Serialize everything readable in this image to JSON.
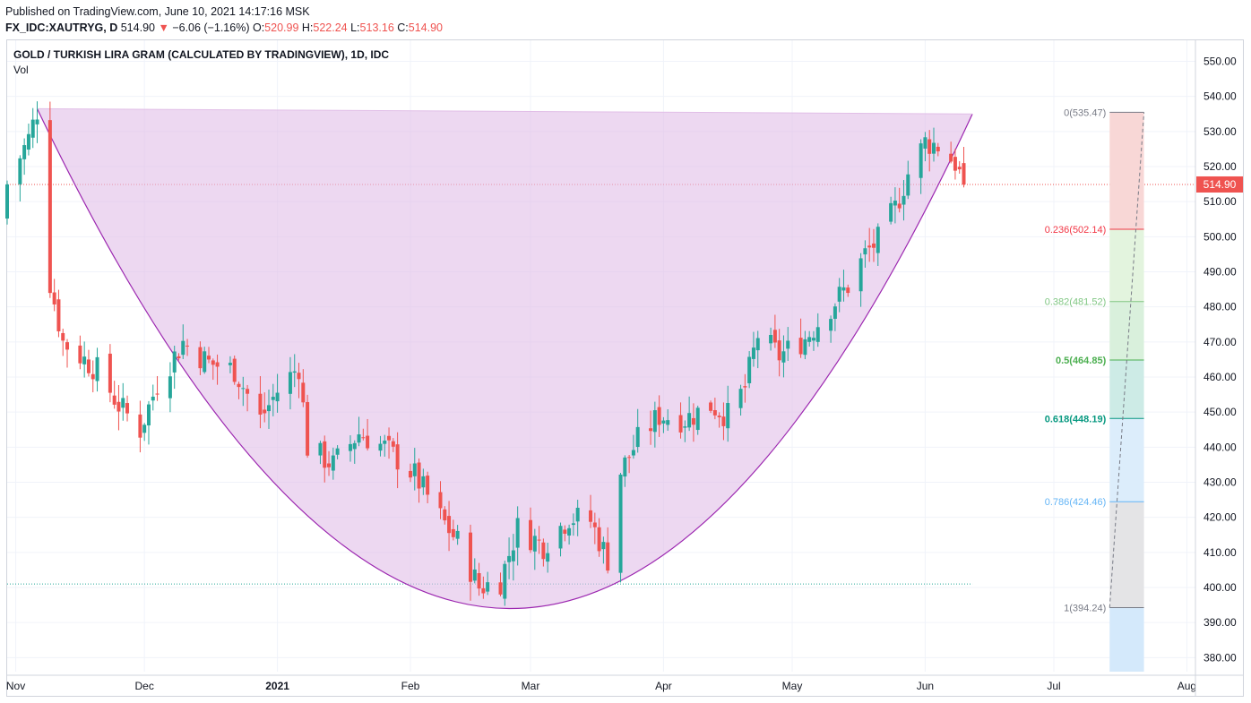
{
  "header": {
    "published": "Published on TradingView.com, June 10, 2021 14:17:16 MSK",
    "symbol": "FX_IDC:XAUTRYG, D",
    "last": "514.90",
    "change_arrow": "▼",
    "change": "−6.06 (−1.16%)",
    "o_label": "O:",
    "o": "520.99",
    "h_label": "H:",
    "h": "522.24",
    "l_label": "L:",
    "l": "513.16",
    "c_label": "C:",
    "c": "514.90"
  },
  "chart_data": {
    "type": "candlestick",
    "title": "GOLD / TURKISH LIRA GRAM (CALCULATED BY TRADINGVIEW), 1D, IDC",
    "subtitle": "Vol",
    "ylim": [
      376,
      556
    ],
    "y_ticks": [
      "550.00",
      "540.00",
      "530.00",
      "520.00",
      "510.00",
      "500.00",
      "490.00",
      "480.00",
      "470.00",
      "460.00",
      "450.00",
      "440.00",
      "430.00",
      "420.00",
      "410.00",
      "400.00",
      "390.00",
      "380.00"
    ],
    "x_ticks": [
      {
        "label": "Nov",
        "date": "2020-11-01"
      },
      {
        "label": "Dec",
        "date": "2020-12-01"
      },
      {
        "label": "2021",
        "date": "2021-01-01",
        "bold": true
      },
      {
        "label": "Feb",
        "date": "2021-02-01"
      },
      {
        "label": "Mar",
        "date": "2021-03-01"
      },
      {
        "label": "Apr",
        "date": "2021-04-01"
      },
      {
        "label": "May",
        "date": "2021-05-01"
      },
      {
        "label": "Jun",
        "date": "2021-06-01"
      },
      {
        "label": "Jul",
        "date": "2021-07-01"
      },
      {
        "label": "Aug",
        "date": "2021-08-01"
      }
    ],
    "x_range": [
      "2020-10-30",
      "2021-08-03"
    ],
    "last_price": 514.9,
    "last_price_label": "514.90",
    "support_level": 401,
    "colors": {
      "up": "#26a69a",
      "down": "#ef5350",
      "cup_fill": "#e1bee7",
      "cup_line": "#9c27b0"
    },
    "cup": {
      "rim_left": {
        "date": "2020-11-06",
        "price": 536.5
      },
      "rim_right": {
        "date": "2021-06-12",
        "price": 535
      },
      "bottom": {
        "date": "2021-02-24",
        "price": 394
      }
    },
    "closes": [
      {
        "date": "2020-10-30",
        "close": 515
      },
      {
        "date": "2020-11-04",
        "close": 528
      },
      {
        "date": "2020-11-06",
        "close": 536
      },
      {
        "date": "2020-11-09",
        "close": 487
      },
      {
        "date": "2020-11-12",
        "close": 470
      },
      {
        "date": "2020-11-16",
        "close": 466
      },
      {
        "date": "2020-11-20",
        "close": 462
      },
      {
        "date": "2020-11-25",
        "close": 452
      },
      {
        "date": "2020-11-30",
        "close": 445
      },
      {
        "date": "2020-12-04",
        "close": 458
      },
      {
        "date": "2020-12-10",
        "close": 470
      },
      {
        "date": "2020-12-16",
        "close": 464
      },
      {
        "date": "2020-12-22",
        "close": 462
      },
      {
        "date": "2020-12-28",
        "close": 448
      },
      {
        "date": "2021-01-01",
        "close": 456
      },
      {
        "date": "2021-01-06",
        "close": 463
      },
      {
        "date": "2021-01-08",
        "close": 440
      },
      {
        "date": "2021-01-14",
        "close": 435
      },
      {
        "date": "2021-01-20",
        "close": 444
      },
      {
        "date": "2021-01-26",
        "close": 440
      },
      {
        "date": "2021-02-02",
        "close": 432
      },
      {
        "date": "2021-02-08",
        "close": 420
      },
      {
        "date": "2021-02-12",
        "close": 413
      },
      {
        "date": "2021-02-17",
        "close": 400
      },
      {
        "date": "2021-02-22",
        "close": 402
      },
      {
        "date": "2021-02-26",
        "close": 417
      },
      {
        "date": "2021-03-04",
        "close": 412
      },
      {
        "date": "2021-03-10",
        "close": 420
      },
      {
        "date": "2021-03-15",
        "close": 419
      },
      {
        "date": "2021-03-19",
        "close": 408
      },
      {
        "date": "2021-03-22",
        "close": 433
      },
      {
        "date": "2021-03-26",
        "close": 442
      },
      {
        "date": "2021-03-31",
        "close": 449
      },
      {
        "date": "2021-04-06",
        "close": 448
      },
      {
        "date": "2021-04-12",
        "close": 452
      },
      {
        "date": "2021-04-16",
        "close": 449
      },
      {
        "date": "2021-04-20",
        "close": 457
      },
      {
        "date": "2021-04-23",
        "close": 472
      },
      {
        "date": "2021-04-28",
        "close": 466
      },
      {
        "date": "2021-05-04",
        "close": 471
      },
      {
        "date": "2021-05-10",
        "close": 480
      },
      {
        "date": "2021-05-14",
        "close": 486
      },
      {
        "date": "2021-05-18",
        "close": 495
      },
      {
        "date": "2021-05-21",
        "close": 499
      },
      {
        "date": "2021-05-25",
        "close": 508
      },
      {
        "date": "2021-05-28",
        "close": 518
      },
      {
        "date": "2021-06-01",
        "close": 527
      },
      {
        "date": "2021-06-04",
        "close": 526
      },
      {
        "date": "2021-06-08",
        "close": 521
      },
      {
        "date": "2021-06-10",
        "close": 514.9
      }
    ],
    "fib": {
      "start": {
        "date": "2021-07-14",
        "price": 394.24
      },
      "end": {
        "date": "2021-07-22",
        "price": 535.47
      },
      "levels": [
        {
          "ratio": "0",
          "price": 535.47,
          "label": "0(535.47)",
          "color": "#787b86",
          "fill": "#f8d7d6"
        },
        {
          "ratio": "0.236",
          "price": 502.14,
          "label": "0.236(502.14)",
          "color": "#f23645",
          "fill": "#e3f4de"
        },
        {
          "ratio": "0.382",
          "price": 481.52,
          "label": "0.382(481.52)",
          "color": "#81c784",
          "fill": "#d9f0dc"
        },
        {
          "ratio": "0.5",
          "price": 464.85,
          "label": "0.5(464.85)",
          "color": "#4caf50",
          "fill": "#cdebe6"
        },
        {
          "ratio": "0.618",
          "price": 448.19,
          "label": "0.618(448.19)",
          "color": "#089981",
          "fill": "#dcedfb"
        },
        {
          "ratio": "0.786",
          "price": 424.46,
          "label": "0.786(424.46)",
          "color": "#64b5f6",
          "fill": "#e4e4e6"
        },
        {
          "ratio": "1",
          "price": 394.24,
          "label": "1(394.24)",
          "color": "#787b86",
          "fill": "#d4e9fb"
        }
      ]
    }
  }
}
